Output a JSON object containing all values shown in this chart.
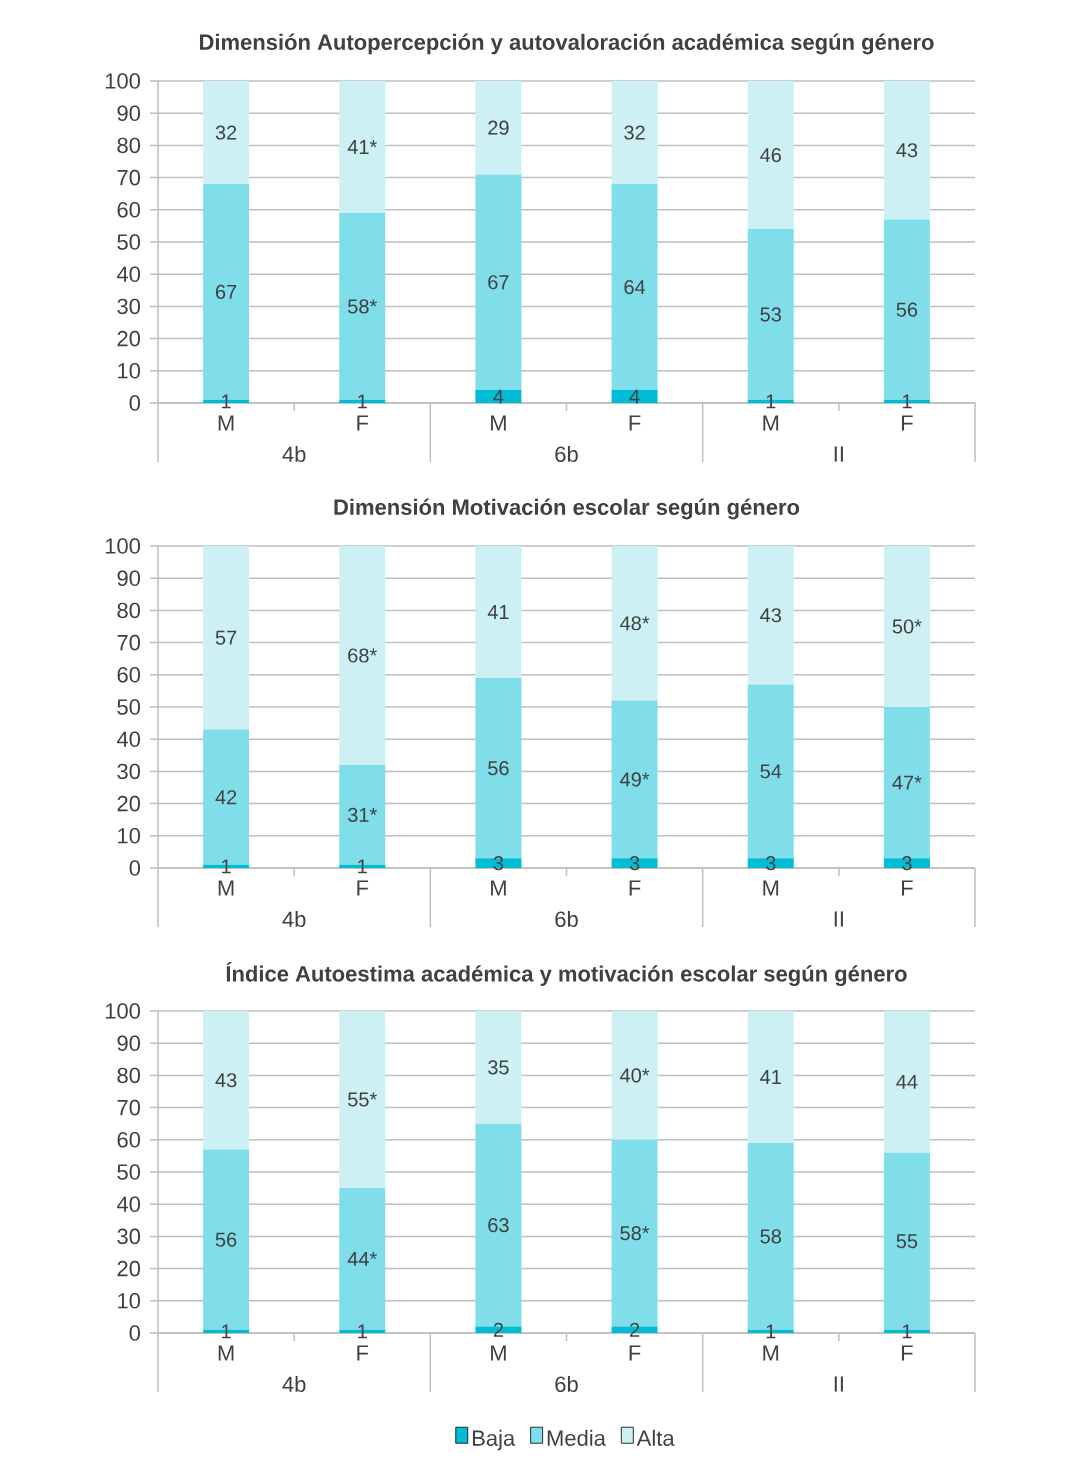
{
  "chart_data": [
    {
      "type": "bar",
      "title": "Dimensión Autopercepción y autovaloración académica según género",
      "categories": [
        "M",
        "F",
        "M",
        "F",
        "M",
        "F"
      ],
      "annotations": [
        "4b",
        "6b",
        "II"
      ],
      "stacked": true,
      "ylim": [
        0,
        100
      ],
      "yticks": [
        0,
        10,
        20,
        30,
        40,
        50,
        60,
        70,
        80,
        90,
        100
      ],
      "grid": "y",
      "series": [
        {
          "color": "#00bcd4",
          "values": [
            1,
            1,
            4,
            4,
            1,
            1
          ],
          "value_labels": [
            "1",
            "1",
            "4",
            "4",
            "1",
            "1"
          ]
        },
        {
          "color": "#80deea",
          "values": [
            67,
            58,
            67,
            64,
            53,
            56
          ],
          "value_labels": [
            "67",
            "58*",
            "67",
            "64",
            "53",
            "56"
          ]
        },
        {
          "color": "#cdf0f5",
          "values": [
            32,
            41,
            29,
            32,
            46,
            43
          ],
          "value_labels": [
            "32",
            "41*",
            "29",
            "32",
            "46",
            "43"
          ]
        }
      ]
    },
    {
      "type": "bar",
      "title": "Dimensión Motivación escolar según género",
      "categories": [
        "M",
        "F",
        "M",
        "F",
        "M",
        "F"
      ],
      "annotations": [
        "4b",
        "6b",
        "II"
      ],
      "stacked": true,
      "ylim": [
        0,
        100
      ],
      "yticks": [
        0,
        10,
        20,
        30,
        40,
        50,
        60,
        70,
        80,
        90,
        100
      ],
      "grid": "y",
      "series": [
        {
          "color": "#00bcd4",
          "values": [
            1,
            1,
            3,
            3,
            3,
            3
          ],
          "value_labels": [
            "1",
            "1",
            "3",
            "3",
            "3",
            "3"
          ]
        },
        {
          "color": "#80deea",
          "values": [
            42,
            31,
            56,
            49,
            54,
            47
          ],
          "value_labels": [
            "42",
            "31*",
            "56",
            "49*",
            "54",
            "47*"
          ]
        },
        {
          "color": "#cdf0f5",
          "values": [
            57,
            68,
            41,
            48,
            43,
            50
          ],
          "value_labels": [
            "57",
            "68*",
            "41",
            "48*",
            "43",
            "50*"
          ]
        }
      ]
    },
    {
      "type": "bar",
      "title": "Índice Autoestima académica y motivación escolar según género",
      "categories": [
        "M",
        "F",
        "M",
        "F",
        "M",
        "F"
      ],
      "annotations": [
        "4b",
        "6b",
        "II"
      ],
      "stacked": true,
      "ylim": [
        0,
        100
      ],
      "yticks": [
        0,
        10,
        20,
        30,
        40,
        50,
        60,
        70,
        80,
        90,
        100
      ],
      "grid": "y",
      "legend": "bottom",
      "series": [
        {
          "name": "Baja",
          "color": "#00bcd4",
          "values": [
            1,
            1,
            2,
            2,
            1,
            1
          ],
          "value_labels": [
            "1",
            "1",
            "2",
            "2",
            "1",
            "1"
          ]
        },
        {
          "name": "Media",
          "color": "#80deea",
          "values": [
            56,
            44,
            63,
            58,
            58,
            55
          ],
          "value_labels": [
            "56",
            "44*",
            "63",
            "58*",
            "58",
            "55"
          ]
        },
        {
          "name": "Alta",
          "color": "#cdf0f5",
          "values": [
            43,
            55,
            35,
            40,
            41,
            44
          ],
          "value_labels": [
            "43",
            "55*",
            "35",
            "40*",
            "41",
            "44"
          ]
        }
      ]
    }
  ]
}
